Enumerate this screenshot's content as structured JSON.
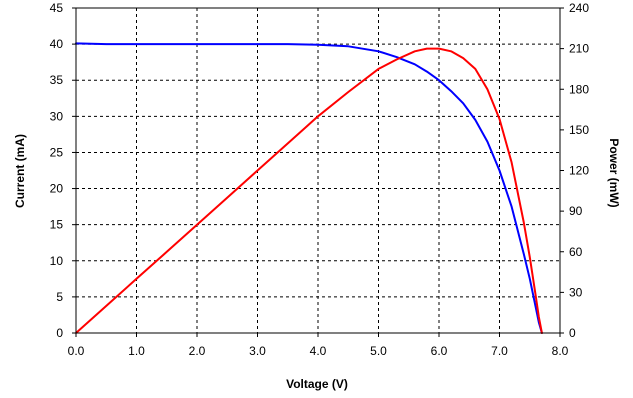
{
  "chart_data": {
    "type": "line",
    "title": "",
    "xlabel": "Voltage (V)",
    "ylabel": "Current (mA)",
    "y2label": "Power (mW)",
    "xlim": [
      0,
      8
    ],
    "ylim": [
      0,
      45
    ],
    "y2lim": [
      0,
      240
    ],
    "xticks": [
      "0.0",
      "1.0",
      "2.0",
      "3.0",
      "4.0",
      "5.0",
      "6.0",
      "7.0",
      "8.0"
    ],
    "yticks": [
      "0",
      "5",
      "10",
      "15",
      "20",
      "25",
      "30",
      "35",
      "40",
      "45"
    ],
    "y2ticks": [
      "0",
      "30",
      "60",
      "90",
      "120",
      "150",
      "180",
      "210",
      "240"
    ],
    "grid": true,
    "grid_style": "dashed",
    "series": [
      {
        "axis": "left",
        "color": "#0000ff",
        "x": [
          0.0,
          0.5,
          1.0,
          1.5,
          2.0,
          2.5,
          3.0,
          3.5,
          4.0,
          4.5,
          5.0,
          5.3,
          5.6,
          5.8,
          6.0,
          6.2,
          6.4,
          6.6,
          6.8,
          7.0,
          7.2,
          7.4,
          7.5,
          7.6,
          7.65,
          7.7
        ],
        "y": [
          40.1,
          40.0,
          40.0,
          40.0,
          40.0,
          40.0,
          40.0,
          40.0,
          39.9,
          39.7,
          39.0,
          38.2,
          37.2,
          36.2,
          35.0,
          33.5,
          31.8,
          29.5,
          26.5,
          22.5,
          17.5,
          11.0,
          7.5,
          3.5,
          1.5,
          0.0
        ]
      },
      {
        "axis": "right",
        "color": "#ff0000",
        "x": [
          0.0,
          0.5,
          1.0,
          1.5,
          2.0,
          2.5,
          3.0,
          3.5,
          4.0,
          4.5,
          5.0,
          5.3,
          5.6,
          5.8,
          6.0,
          6.2,
          6.4,
          6.6,
          6.8,
          7.0,
          7.2,
          7.4,
          7.5,
          7.6,
          7.65,
          7.7
        ],
        "y": [
          0.0,
          20.0,
          40.0,
          60.0,
          80.0,
          100.0,
          120.0,
          140.0,
          160.0,
          178.0,
          195.0,
          202.0,
          208.0,
          210.0,
          210.0,
          208.0,
          203.0,
          195.0,
          180.0,
          158.0,
          126.0,
          82.0,
          56.0,
          27.0,
          12.0,
          0.0
        ]
      }
    ]
  }
}
